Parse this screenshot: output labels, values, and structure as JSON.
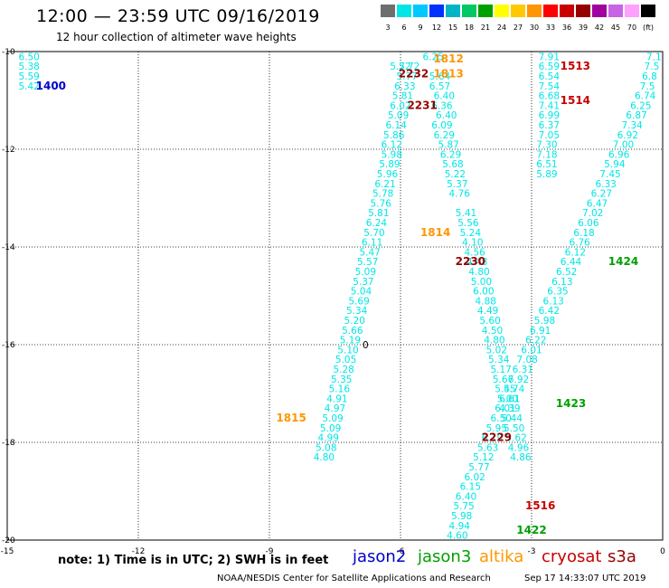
{
  "header": {
    "title": "12:00 — 23:59 UTC 09/16/2019",
    "subtitle": "12 hour collection of altimeter wave heights"
  },
  "scale": {
    "colors": [
      "#6e6e6e",
      "#00e6e6",
      "#00c8ff",
      "#0032ff",
      "#00b4c8",
      "#00c864",
      "#00a000",
      "#ffff00",
      "#ffc800",
      "#ff9600",
      "#ff0000",
      "#c80000",
      "#960000",
      "#a000a0",
      "#c864e6",
      "#ffa0ff",
      "#000000"
    ],
    "labels": [
      "3",
      "6",
      "9",
      "12",
      "15",
      "18",
      "21",
      "24",
      "27",
      "30",
      "33",
      "36",
      "39",
      "42",
      "45",
      "70",
      "(ft)"
    ]
  },
  "footer": {
    "note": "note:  1) Time is in UTC;  2) SWH is in feet",
    "credit": "NOAA/NESDIS Center for Satellite Applications and Research",
    "date": "Sep 17 14:33:07 UTC 2019"
  },
  "legend": [
    {
      "name": "jason2",
      "color": "#0000cc"
    },
    {
      "name": "jason3",
      "color": "#00a000"
    },
    {
      "name": "altika",
      "color": "#ff9600"
    },
    {
      "name": "cryosat",
      "color": "#c80000"
    },
    {
      "name": "s3a",
      "color": "#960000"
    }
  ],
  "chart_data": {
    "type": "scatter",
    "xlim": [
      -15,
      0
    ],
    "ylim": [
      -20,
      -10
    ],
    "xticks": [
      -15,
      -12,
      -9,
      -6,
      -3,
      0
    ],
    "yticks": [
      -10,
      -12,
      -14,
      -16,
      -18,
      -20
    ],
    "grid": true,
    "point_color": "#00e6e6",
    "series": [
      {
        "satellite": "jason2",
        "color": "#00e6e6",
        "points": [
          [
            -14.5,
            -10.1,
            "6.50"
          ],
          [
            -14.5,
            -10.3,
            "5.38"
          ],
          [
            -14.5,
            -10.5,
            "5.59"
          ],
          [
            -14.5,
            -10.7,
            "5.42"
          ]
        ]
      },
      {
        "satellite": "jason3",
        "color": "#00e6e6",
        "points": [
          [
            -5.8,
            -10.3,
            "5.72"
          ],
          [
            -5.85,
            -10.5,
            "5.77"
          ],
          [
            -5.9,
            -10.7,
            "6.33"
          ],
          [
            -5.95,
            -10.9,
            "5.81"
          ],
          [
            -6.0,
            -11.1,
            "6.02"
          ],
          [
            -6.05,
            -11.3,
            "5.09"
          ],
          [
            -6.1,
            -11.5,
            "6.14"
          ],
          [
            -6.15,
            -11.7,
            "5.86"
          ],
          [
            -6.2,
            -11.9,
            "6.12"
          ],
          [
            -6.2,
            -12.1,
            "5.98"
          ],
          [
            -6.25,
            -12.3,
            "5.89"
          ],
          [
            -6.3,
            -12.5,
            "5.96"
          ],
          [
            -6.35,
            -12.7,
            "6.21"
          ],
          [
            -6.4,
            -12.9,
            "5.78"
          ],
          [
            -6.45,
            -13.1,
            "5.76"
          ],
          [
            -6.5,
            -13.3,
            "5.81"
          ],
          [
            -6.55,
            -13.5,
            "6.24"
          ],
          [
            -6.6,
            -13.7,
            "5.70"
          ],
          [
            -6.65,
            -13.9,
            "6.11"
          ],
          [
            -6.7,
            -14.1,
            "5.47"
          ],
          [
            -6.75,
            -14.3,
            "5.57"
          ],
          [
            -6.8,
            -14.5,
            "5.09"
          ],
          [
            -6.85,
            -14.7,
            "5.37"
          ],
          [
            -6.9,
            -14.9,
            "5.04"
          ],
          [
            -6.95,
            -15.1,
            "5.69"
          ],
          [
            -7.0,
            -15.3,
            "5.34"
          ],
          [
            -7.05,
            -15.5,
            "5.20"
          ],
          [
            -7.1,
            -15.7,
            "5.66"
          ],
          [
            -7.15,
            -15.9,
            "5.19"
          ],
          [
            -7.2,
            -16.1,
            "5.10"
          ],
          [
            -7.25,
            -16.3,
            "5.05"
          ],
          [
            -7.3,
            -16.5,
            "5.28"
          ],
          [
            -7.35,
            -16.7,
            "5.35"
          ],
          [
            -7.4,
            -16.9,
            "5.16"
          ],
          [
            -7.45,
            -17.1,
            "4.91"
          ],
          [
            -7.5,
            -17.3,
            "4.97"
          ],
          [
            -7.55,
            -17.5,
            "5.09"
          ],
          [
            -7.6,
            -17.7,
            "5.09"
          ],
          [
            -7.65,
            -17.9,
            "4.99"
          ],
          [
            -7.7,
            -18.1,
            "5.08"
          ],
          [
            -7.75,
            -18.3,
            "4.80"
          ]
        ]
      },
      {
        "satellite": "altika",
        "color": "#00e6e6",
        "points": [
          [
            -5.25,
            -10.1,
            "6.25"
          ],
          [
            -5.1,
            -10.5,
            "5.64"
          ],
          [
            -5.1,
            -10.7,
            "6.57"
          ],
          [
            -5.0,
            -10.9,
            "6.40"
          ],
          [
            -5.05,
            -11.1,
            "6.36"
          ],
          [
            -4.95,
            -11.3,
            "6.40"
          ],
          [
            -5.05,
            -11.5,
            "6.09"
          ],
          [
            -5.0,
            -11.7,
            "6.29"
          ],
          [
            -4.9,
            -11.9,
            "5.87"
          ],
          [
            -4.85,
            -12.1,
            "6.29"
          ],
          [
            -4.8,
            -12.3,
            "5.68"
          ],
          [
            -4.75,
            -12.5,
            "5.22"
          ],
          [
            -4.7,
            -12.7,
            "5.37"
          ],
          [
            -4.65,
            -12.9,
            "4.76"
          ],
          [
            -4.5,
            -13.3,
            "5.41"
          ],
          [
            -4.45,
            -13.5,
            "5.56"
          ],
          [
            -4.4,
            -13.7,
            "5.24"
          ],
          [
            -4.35,
            -13.9,
            "4.10"
          ],
          [
            -4.3,
            -14.1,
            "4.56"
          ],
          [
            -4.25,
            -14.3,
            "4.48"
          ],
          [
            -4.2,
            -14.5,
            "4.80"
          ],
          [
            -4.15,
            -14.7,
            "5.00"
          ],
          [
            -4.1,
            -14.9,
            "6.00"
          ],
          [
            -4.05,
            -15.1,
            "4.88"
          ],
          [
            -4.0,
            -15.3,
            "4.49"
          ],
          [
            -3.95,
            -15.5,
            "5.60"
          ],
          [
            -3.9,
            -15.7,
            "4.50"
          ],
          [
            -3.85,
            -15.9,
            "4.80"
          ],
          [
            -3.8,
            -16.1,
            "5.02"
          ],
          [
            -3.75,
            -16.3,
            "5.34"
          ],
          [
            -3.7,
            -16.5,
            "5.17"
          ],
          [
            -3.65,
            -16.7,
            "5.67"
          ],
          [
            -3.6,
            -16.9,
            "5.45"
          ],
          [
            -3.55,
            -17.1,
            "5.00"
          ],
          [
            -3.5,
            -17.3,
            "4.39"
          ],
          [
            -3.45,
            -17.5,
            "5.44"
          ],
          [
            -3.4,
            -17.7,
            "5.50"
          ],
          [
            -3.35,
            -17.9,
            "5.62"
          ],
          [
            -3.3,
            -18.1,
            "4.96"
          ],
          [
            -3.25,
            -18.3,
            "4.86"
          ]
        ]
      },
      {
        "satellite": "cryosat",
        "color": "#00e6e6",
        "points": [
          [
            -2.6,
            -10.1,
            "7.91"
          ],
          [
            -2.6,
            -10.3,
            "6.59"
          ],
          [
            -2.6,
            -10.5,
            "6.54"
          ],
          [
            -2.6,
            -10.7,
            "7.54"
          ],
          [
            -2.6,
            -10.9,
            "6.68"
          ],
          [
            -2.6,
            -11.1,
            "7.41"
          ],
          [
            -2.6,
            -11.3,
            "6.99"
          ],
          [
            -2.6,
            -11.5,
            "6.37"
          ],
          [
            -2.6,
            -11.7,
            "7.05"
          ],
          [
            -2.65,
            -11.9,
            "7.30"
          ],
          [
            -2.65,
            -12.1,
            "7.18"
          ],
          [
            -2.65,
            -12.3,
            "6.51"
          ],
          [
            -2.65,
            -12.5,
            "5.89"
          ]
        ]
      },
      {
        "satellite": "s3a",
        "color": "#00e6e6",
        "points": [
          [
            -0.2,
            -10.1,
            "7.1"
          ],
          [
            -0.25,
            -10.3,
            "7.5"
          ],
          [
            -0.3,
            -10.5,
            "6.8"
          ],
          [
            -0.35,
            -10.7,
            "7.5"
          ],
          [
            -0.4,
            -10.9,
            "6.74"
          ],
          [
            -0.5,
            -11.1,
            "6.25"
          ],
          [
            -0.6,
            -11.3,
            "6.87"
          ],
          [
            -0.7,
            -11.5,
            "7.34"
          ],
          [
            -0.8,
            -11.7,
            "6.92"
          ],
          [
            -0.9,
            -11.9,
            "7.00"
          ],
          [
            -1.0,
            -12.1,
            "6.96"
          ],
          [
            -1.1,
            -12.3,
            "5.94"
          ],
          [
            -1.2,
            -12.5,
            "7.45"
          ],
          [
            -1.3,
            -12.7,
            "6.33"
          ],
          [
            -1.4,
            -12.9,
            "6.27"
          ],
          [
            -1.5,
            -13.1,
            "6.47"
          ],
          [
            -1.6,
            -13.3,
            "7.02"
          ],
          [
            -1.7,
            -13.5,
            "6.06"
          ],
          [
            -1.8,
            -13.7,
            "6.18"
          ],
          [
            -1.9,
            -13.9,
            "6.76"
          ],
          [
            -2.0,
            -14.1,
            "6.12"
          ],
          [
            -2.1,
            -14.3,
            "6.44"
          ],
          [
            -2.2,
            -14.5,
            "6.52"
          ],
          [
            -2.3,
            -14.7,
            "6.13"
          ],
          [
            -2.4,
            -14.9,
            "6.35"
          ],
          [
            -2.5,
            -15.1,
            "6.13"
          ],
          [
            -2.6,
            -15.3,
            "6.42"
          ],
          [
            -2.7,
            -15.5,
            "5.98"
          ],
          [
            -2.8,
            -15.7,
            "6.91"
          ],
          [
            -2.9,
            -15.9,
            "6.22"
          ],
          [
            -3.0,
            -16.1,
            "6.01"
          ],
          [
            -3.1,
            -16.3,
            "7.08"
          ],
          [
            -3.2,
            -16.5,
            "6.31"
          ],
          [
            -3.3,
            -16.7,
            "6.92"
          ],
          [
            -3.4,
            -16.9,
            "5.74"
          ],
          [
            -3.5,
            -17.1,
            "6.61"
          ],
          [
            -3.6,
            -17.3,
            "6.01"
          ],
          [
            -3.7,
            -17.5,
            "6.50"
          ],
          [
            -3.8,
            -17.7,
            "5.95"
          ],
          [
            -3.9,
            -17.9,
            "6.19"
          ],
          [
            -4.0,
            -18.1,
            "5.63"
          ],
          [
            -4.1,
            -18.3,
            "5.12"
          ],
          [
            -4.2,
            -18.5,
            "5.77"
          ],
          [
            -4.3,
            -18.7,
            "6.02"
          ],
          [
            -4.4,
            -18.9,
            "6.15"
          ],
          [
            -4.5,
            -19.1,
            "6.40"
          ],
          [
            -4.55,
            -19.3,
            "5.75"
          ],
          [
            -4.6,
            -19.5,
            "5.98"
          ],
          [
            -4.65,
            -19.7,
            "4.94"
          ],
          [
            -4.7,
            -19.9,
            "4.60"
          ]
        ]
      }
    ],
    "time_labels": [
      {
        "x": -14.0,
        "y": -10.7,
        "text": "1400",
        "color": "#0000cc"
      },
      {
        "x": -4.9,
        "y": -10.15,
        "text": "1812",
        "color": "#ff9600"
      },
      {
        "x": -4.9,
        "y": -10.45,
        "text": "1813",
        "color": "#ff9600"
      },
      {
        "x": -5.7,
        "y": -10.45,
        "text": "2232",
        "color": "#960000"
      },
      {
        "x": -5.5,
        "y": -11.1,
        "text": "2231",
        "color": "#960000"
      },
      {
        "x": -5.2,
        "y": -13.7,
        "text": "1814",
        "color": "#ff9600"
      },
      {
        "x": -4.4,
        "y": -14.3,
        "text": "2230",
        "color": "#960000"
      },
      {
        "x": -8.5,
        "y": -17.5,
        "text": "1815",
        "color": "#ff9600"
      },
      {
        "x": -3.8,
        "y": -17.9,
        "text": "2229",
        "color": "#960000"
      },
      {
        "x": -2.0,
        "y": -10.3,
        "text": "1513",
        "color": "#c80000"
      },
      {
        "x": -2.0,
        "y": -11.0,
        "text": "1514",
        "color": "#c80000"
      },
      {
        "x": -2.8,
        "y": -19.3,
        "text": "1516",
        "color": "#c80000"
      },
      {
        "x": -0.9,
        "y": -14.3,
        "text": "1424",
        "color": "#00a000"
      },
      {
        "x": -2.1,
        "y": -17.2,
        "text": "1423",
        "color": "#00a000"
      },
      {
        "x": -3.0,
        "y": -19.8,
        "text": "1422",
        "color": "#00a000"
      }
    ],
    "extra_points": [
      {
        "x": -6.0,
        "y": -10.3,
        "text": "5.72"
      },
      {
        "x": -6.8,
        "y": -16.0,
        "text": "0"
      }
    ]
  }
}
